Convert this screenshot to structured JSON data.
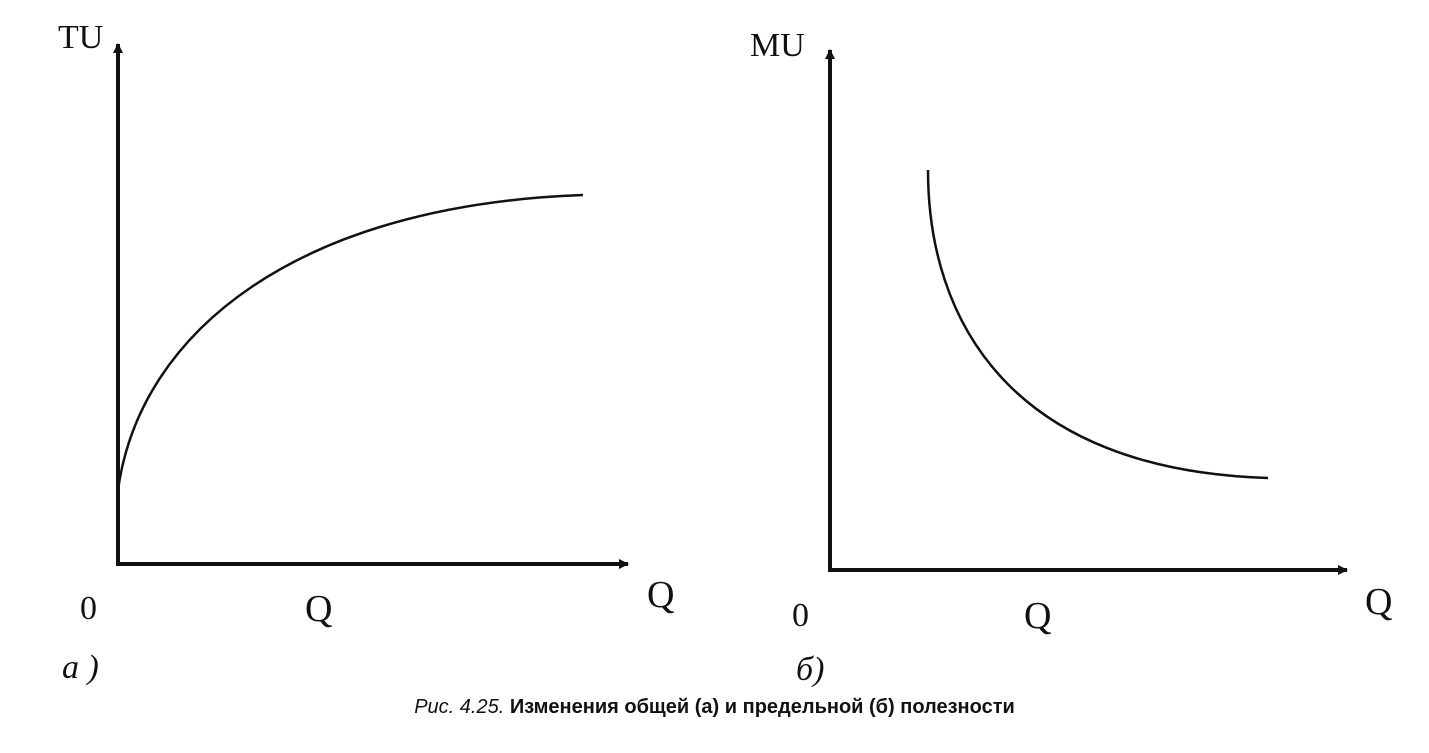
{
  "panel_a": {
    "y_axis_label": "TU",
    "x_axis_label": "Q",
    "x_axis_arrow_label": "Q",
    "origin_label": "0",
    "panel_label": "a )",
    "curve": "total-utility"
  },
  "panel_b": {
    "y_axis_label": "MU",
    "x_axis_label": "Q",
    "x_axis_arrow_label": "Q",
    "origin_label": "0",
    "panel_label": "б)",
    "curve": "marginal-utility"
  },
  "caption": {
    "number": "Рис. 4.25.",
    "text": "Изменения общей (а) и предельной (б) полезности"
  },
  "colors": {
    "ink": "#111111",
    "background": "#ffffff"
  }
}
